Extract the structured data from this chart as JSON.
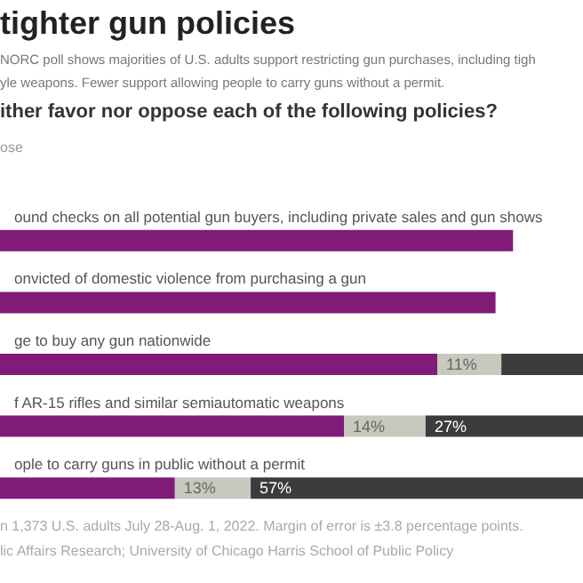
{
  "chart_data": {
    "type": "bar",
    "orientation": "horizontal",
    "stacked": true,
    "title": "tighter gun policies",
    "subtitle": "NORC poll shows majorities of U.S. adults support restricting gun purchases, including tigh\nyle weapons. Fewer support allowing people to carry guns without a permit.",
    "annotations": [
      "ither favor nor oppose each of the following policies?",
      "ose",
      "n 1,373 U.S. adults July 28-Aug. 1, 2022. Margin of error is ±3.8 percentage points.",
      "lic Affairs Research; University of Chicago Harris School of Public Policy"
    ],
    "categories": [
      "ound checks on all potential gun buyers, including private sales and gun shows",
      "onvicted of domestic violence from purchasing a gun",
      "ge to buy any gun nationwide",
      "f AR-15 rifles and similar semiautomatic weapons",
      "ople to carry guns in public without a permit"
    ],
    "xlim": [
      0,
      100
    ],
    "series": [
      {
        "color": "#801b78",
        "values": [
          88,
          85,
          75,
          59,
          30
        ]
      },
      {
        "color": "#c8c8be",
        "values": [
          null,
          null,
          11,
          14,
          13
        ],
        "value_labels": [
          null,
          null,
          "11%",
          "14%",
          "13%"
        ]
      },
      {
        "color": "#3c3c3c",
        "values": [
          null,
          null,
          14,
          27,
          57
        ],
        "value_labels": [
          null,
          null,
          null,
          "27%",
          "57%"
        ]
      }
    ]
  }
}
